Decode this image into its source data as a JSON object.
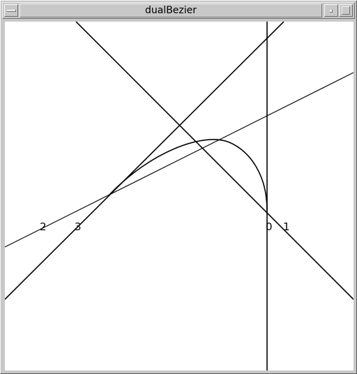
{
  "window": {
    "title": "dualBezier"
  },
  "titlebar_icons": {
    "menu": "window-menu-icon",
    "minimize": "minimize-icon",
    "maximize": "maximize-icon"
  },
  "colors": {
    "frame": "#c8c8c8",
    "canvas": "#ffffff",
    "ink": "#000000"
  },
  "control_point_labels": [
    "2",
    "3",
    "0",
    "1"
  ]
}
